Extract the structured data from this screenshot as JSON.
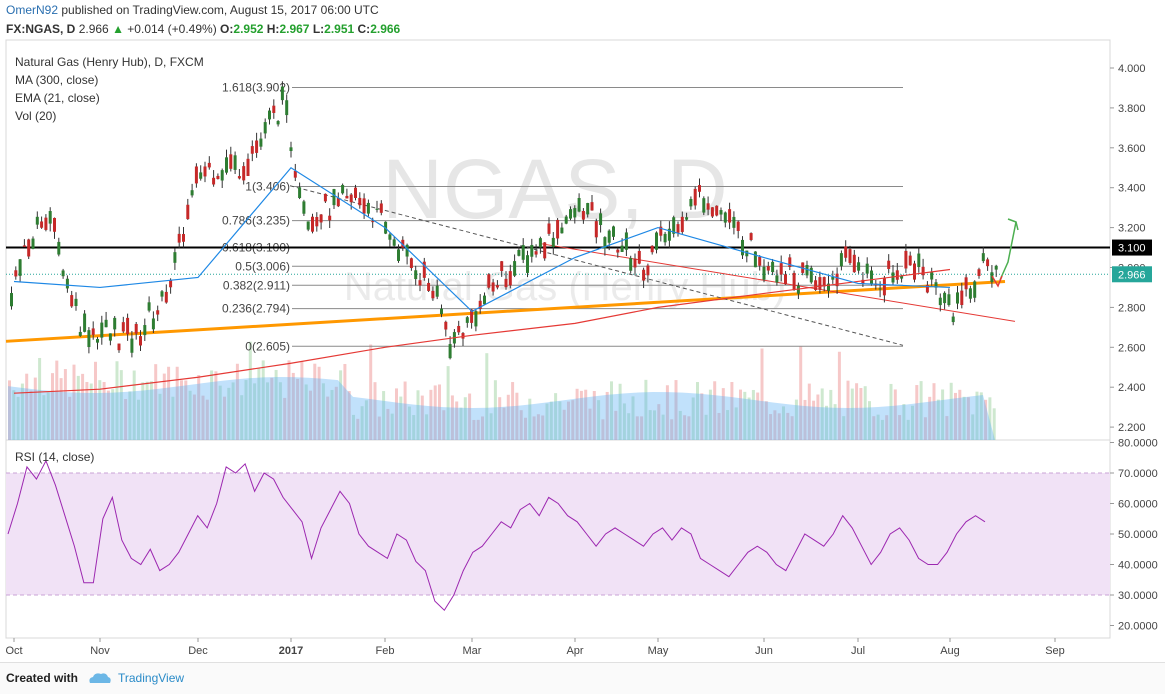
{
  "header": {
    "author": "OmerN92",
    "published_text": "published on TradingView.com, August 15, 2017 06:00 UTC",
    "symbol": "FX:NGAS, D",
    "last": "2.966",
    "change": "+0.014 (+0.49%)",
    "o_label": "O:",
    "o_value": "2.952",
    "h_label": "H:",
    "h_value": "2.967",
    "l_label": "L:",
    "l_value": "2.951",
    "c_label": "C:",
    "c_value": "2.966"
  },
  "legend": {
    "title": "Natural Gas (Henry Hub), D, FXCM",
    "ma": "MA (300, close)",
    "ema": "EMA (21, close)",
    "vol": "Vol (20)"
  },
  "watermark": {
    "symbol": "NGAS, D",
    "name": "Natural Gas (Henry Hub)"
  },
  "footer": {
    "created_with": "Created with",
    "brand": "TradingView"
  },
  "chart_data": [
    {
      "type": "line",
      "title": "Natural Gas (Henry Hub), D, FXCM",
      "ylim": [
        2.15,
        4.1
      ],
      "y_ticks": [
        "4.000",
        "3.800",
        "3.600",
        "3.400",
        "3.200",
        "3.000",
        "2.800",
        "2.600",
        "2.400",
        "2.200"
      ],
      "x_ticks": [
        "Oct",
        "Nov",
        "Dec",
        "2017",
        "Feb",
        "Mar",
        "Apr",
        "May",
        "Jun",
        "Jul",
        "Aug",
        "Sep"
      ],
      "price_markers": [
        {
          "label": "3.100",
          "value": 3.1,
          "color": "#000000"
        },
        {
          "label": "2.966",
          "value": 2.966,
          "color": "#26a69a"
        }
      ],
      "fibonacci": [
        {
          "label": "1.618(3.902)",
          "value": 3.902
        },
        {
          "label": "1(3.406)",
          "value": 3.406
        },
        {
          "label": "0.786(3.235)",
          "value": 3.235
        },
        {
          "label": "0.618(3.100)",
          "value": 3.1
        },
        {
          "label": "0.5(3.006)",
          "value": 3.006
        },
        {
          "label": "0.382(2.911)",
          "value": 2.911
        },
        {
          "label": "0.236(2.794)",
          "value": 2.794
        },
        {
          "label": "0(2.605)",
          "value": 2.605
        }
      ],
      "series": [
        {
          "name": "MA (300, close)",
          "color": "#e53935",
          "x": [
            "Oct",
            "Nov",
            "Dec",
            "2017",
            "Feb",
            "Mar",
            "Apr",
            "May",
            "Jun",
            "Jul",
            "Aug"
          ],
          "values": [
            2.37,
            2.39,
            2.45,
            2.52,
            2.6,
            2.66,
            2.72,
            2.8,
            2.87,
            2.93,
            2.99
          ]
        },
        {
          "name": "EMA (21, close)",
          "color": "#1e88e5",
          "x": [
            "Oct",
            "Nov",
            "Dec",
            "2017",
            "Feb",
            "Mar",
            "Apr",
            "May",
            "Jun",
            "Jul",
            "Aug"
          ],
          "values": [
            2.93,
            2.9,
            2.95,
            3.5,
            3.2,
            2.78,
            3.05,
            3.2,
            3.05,
            2.92,
            2.9
          ]
        }
      ],
      "trendlines": [
        {
          "name": "support",
          "color": "#ff9800",
          "from": [
            2.65,
            "Oct"
          ],
          "to": [
            2.93,
            "Aug"
          ]
        },
        {
          "name": "resistance",
          "color": "#e53935",
          "from": [
            3.12,
            "Apr"
          ],
          "to": [
            2.73,
            "Aug"
          ]
        },
        {
          "name": "dashed",
          "color": "#555555",
          "from": [
            3.4,
            "2017"
          ],
          "to": [
            2.6,
            "Aug"
          ]
        }
      ]
    },
    {
      "type": "line",
      "title": "RSI (14, close)",
      "ylim": [
        15,
        80
      ],
      "y_ticks": [
        "80.0000",
        "70.0000",
        "60.0000",
        "50.0000",
        "40.0000",
        "30.0000",
        "20.0000"
      ],
      "band": [
        30,
        70
      ],
      "series": [
        {
          "name": "RSI (14, close)",
          "color": "#9c27b0",
          "values": [
            50,
            60,
            72,
            68,
            74,
            66,
            56,
            46,
            34,
            34,
            55,
            62,
            48,
            42,
            40,
            45,
            38,
            40,
            44,
            50,
            56,
            52,
            60,
            72,
            70,
            73,
            64,
            70,
            68,
            62,
            58,
            54,
            42,
            52,
            58,
            64,
            60,
            50,
            46,
            44,
            42,
            50,
            48,
            41,
            38,
            28,
            25,
            30,
            38,
            44,
            46,
            50,
            54,
            52,
            58,
            60,
            56,
            62,
            60,
            56,
            54,
            50,
            46,
            50,
            52,
            50,
            48,
            46,
            50,
            52,
            48,
            52,
            50,
            42,
            40,
            38,
            36,
            40,
            44,
            46,
            44,
            40,
            38,
            44,
            50,
            48,
            46,
            50,
            56,
            52,
            46,
            40,
            44,
            50,
            52,
            48,
            42,
            40,
            40,
            44,
            50,
            54,
            56,
            54
          ]
        }
      ]
    }
  ]
}
